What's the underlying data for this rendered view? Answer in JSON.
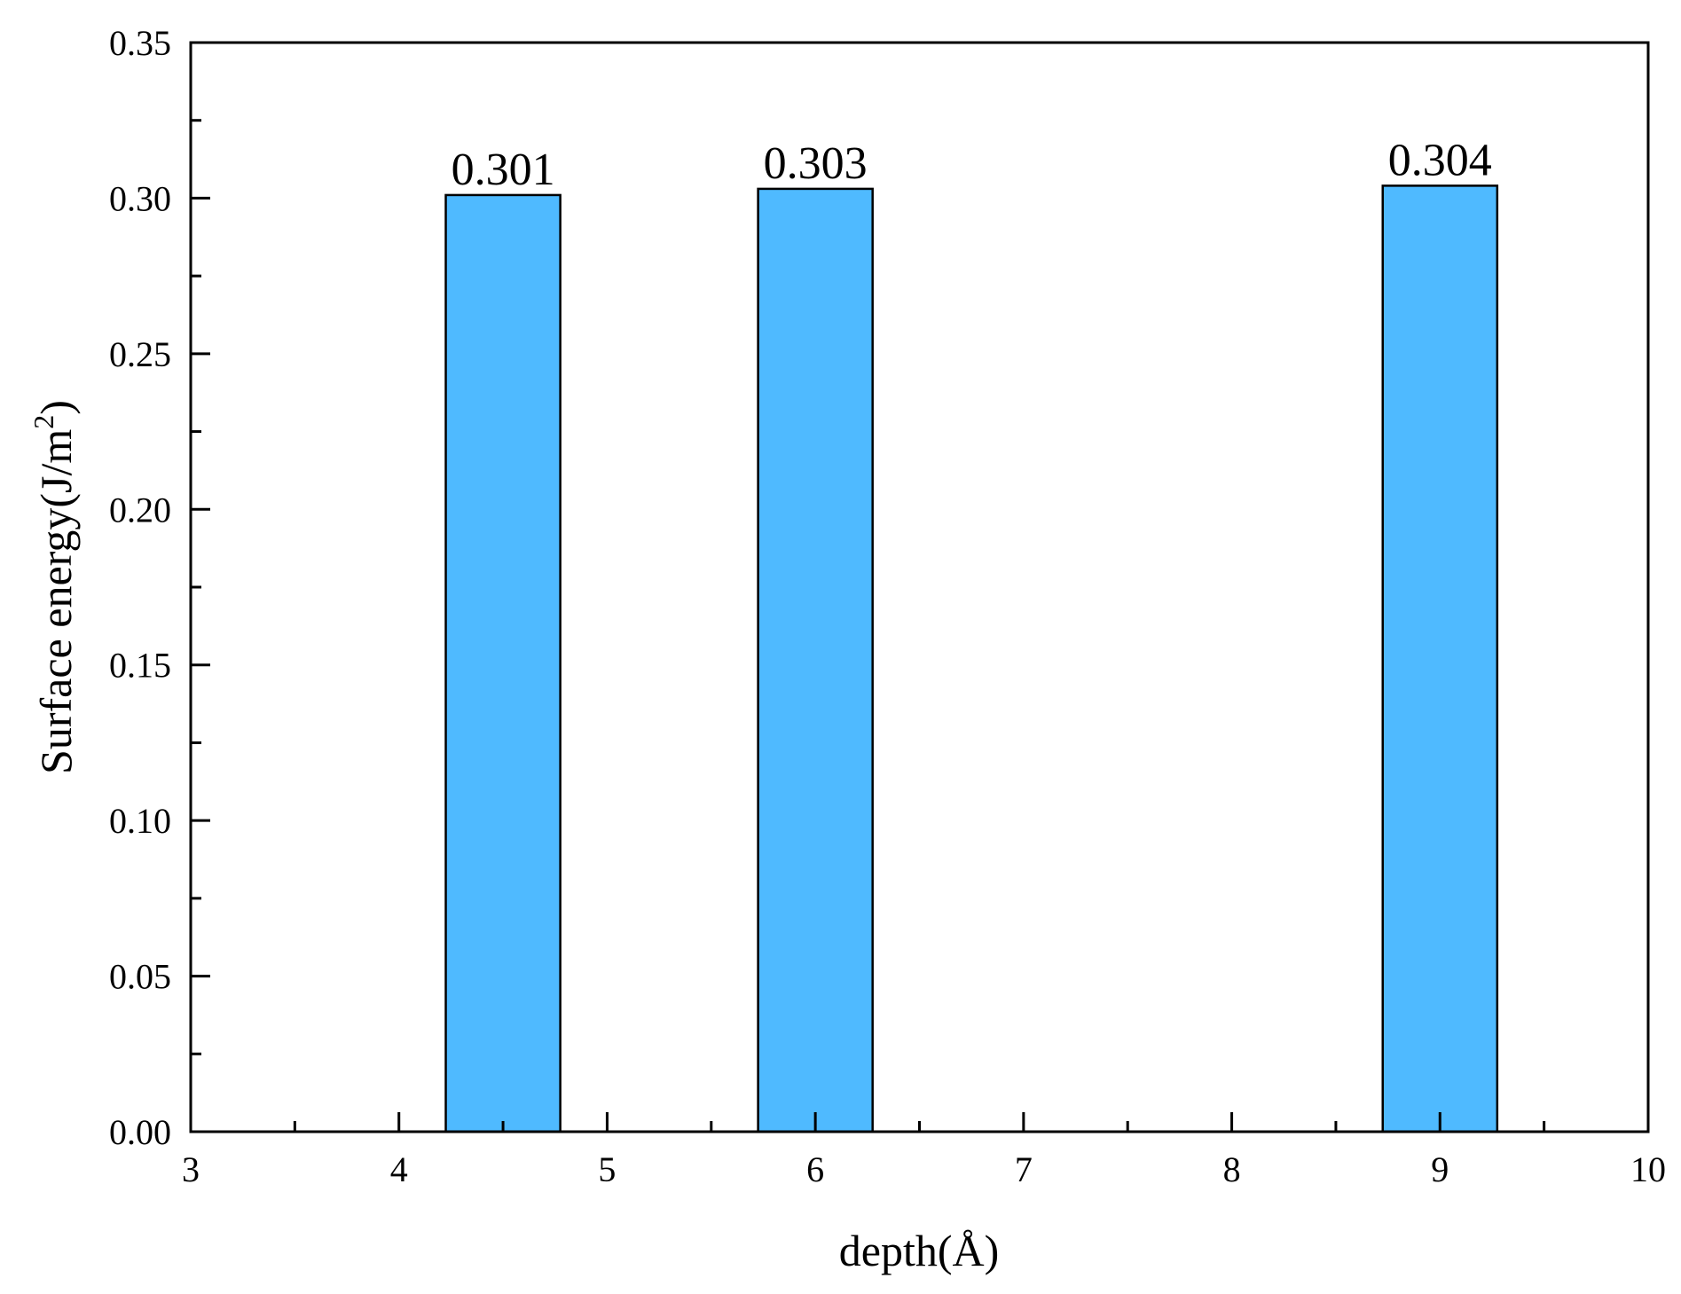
{
  "chart_data": {
    "type": "bar",
    "x": [
      4.5,
      6.0,
      9.0
    ],
    "values": [
      0.301,
      0.303,
      0.304
    ],
    "data_labels": [
      "0.301",
      "0.303",
      "0.304"
    ],
    "bar_width": 0.55,
    "bar_color": "#4FBAFF",
    "bar_edge_color": "#000000",
    "xlabel": "depth(Å)",
    "ylabel": "Surface energy(J/m",
    "ylabel_superscript": "2",
    "ylabel_suffix": ")",
    "xlim": [
      3,
      10
    ],
    "ylim": [
      0,
      0.35
    ],
    "x_major_ticks": [
      3,
      4,
      5,
      6,
      7,
      8,
      9,
      10
    ],
    "x_tick_labels": [
      "3",
      "4",
      "5",
      "6",
      "7",
      "8",
      "9",
      "10"
    ],
    "y_major_ticks": [
      0,
      0.05,
      0.1,
      0.15,
      0.2,
      0.25,
      0.3,
      0.35
    ],
    "y_tick_labels": [
      "0.00",
      "0.05",
      "0.10",
      "0.15",
      "0.20",
      "0.25",
      "0.30",
      "0.35"
    ],
    "grid": false,
    "legend": "none"
  }
}
